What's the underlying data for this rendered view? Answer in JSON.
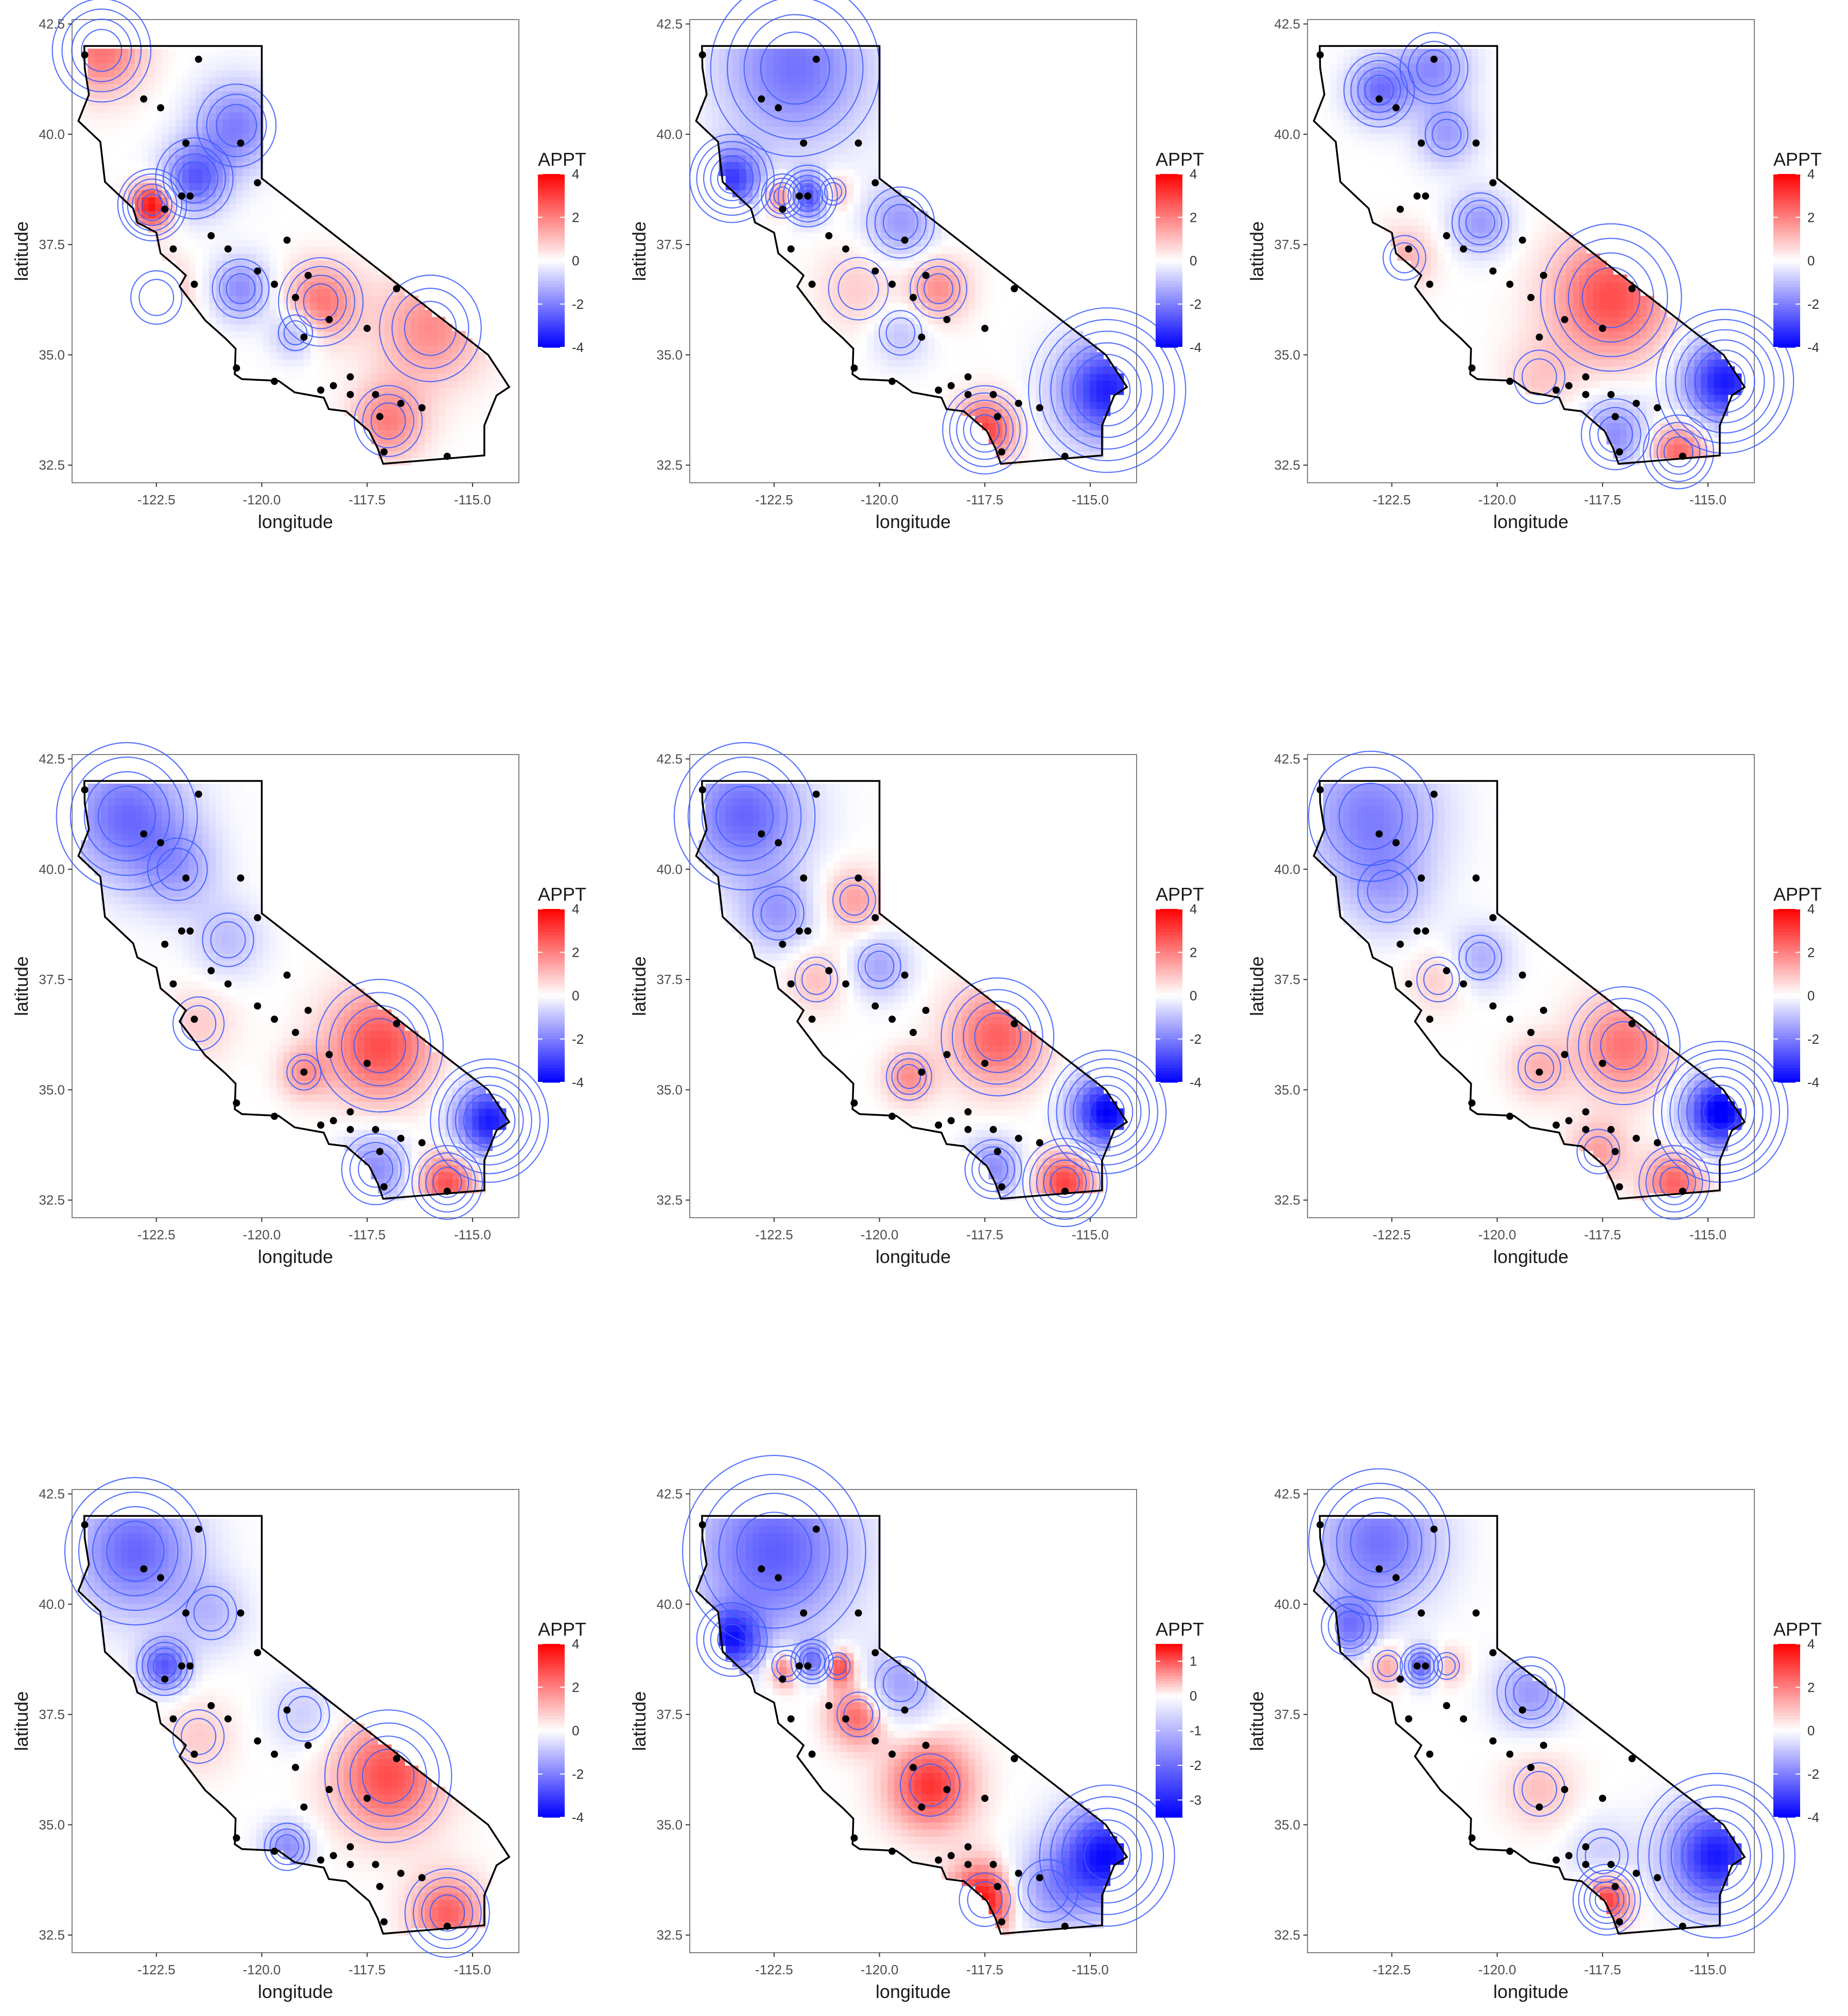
{
  "map": {
    "x_axis_title": "longitude",
    "y_axis_title": "latitude",
    "x_ticks": [
      -122.5,
      -120.0,
      -117.5,
      -115.0
    ],
    "x_tick_labels": [
      "-122.5",
      "-120.0",
      "-117.5",
      "-115.0"
    ],
    "y_ticks": [
      32.5,
      35.0,
      37.5,
      40.0,
      42.5
    ],
    "y_tick_labels": [
      "32.5",
      "35.0",
      "37.5",
      "40.0",
      "42.5"
    ],
    "xlim": [
      -124.5,
      -113.9
    ],
    "ylim": [
      32.1,
      42.6
    ],
    "grid": false,
    "colors": {
      "low": "#0000ff",
      "mid": "#ffffff",
      "high": "#ff0000",
      "contour": "#3b5bff",
      "na": "#555555",
      "station": "#000000"
    }
  },
  "stations": [
    [
      -124.2,
      41.8
    ],
    [
      -122.8,
      40.8
    ],
    [
      -122.4,
      40.6
    ],
    [
      -121.8,
      39.8
    ],
    [
      -121.5,
      41.7
    ],
    [
      -120.5,
      39.8
    ],
    [
      -121.9,
      38.6
    ],
    [
      -121.7,
      38.6
    ],
    [
      -122.3,
      38.3
    ],
    [
      -121.2,
      37.7
    ],
    [
      -120.8,
      37.4
    ],
    [
      -120.1,
      36.9
    ],
    [
      -119.7,
      36.6
    ],
    [
      -119.2,
      36.3
    ],
    [
      -118.9,
      36.8
    ],
    [
      -118.4,
      35.8
    ],
    [
      -117.5,
      35.6
    ],
    [
      -116.8,
      36.5
    ],
    [
      -119.0,
      35.4
    ],
    [
      -118.3,
      34.3
    ],
    [
      -118.6,
      34.2
    ],
    [
      -117.9,
      34.1
    ],
    [
      -117.3,
      34.1
    ],
    [
      -117.2,
      33.6
    ],
    [
      -116.7,
      33.9
    ],
    [
      -116.2,
      33.8
    ],
    [
      -117.1,
      32.8
    ],
    [
      -115.6,
      32.7
    ],
    [
      -120.6,
      34.7
    ],
    [
      -119.7,
      34.4
    ],
    [
      -121.6,
      36.6
    ],
    [
      -122.1,
      37.4
    ],
    [
      -117.9,
      34.5
    ],
    [
      -120.1,
      38.9
    ],
    [
      -119.4,
      37.6
    ]
  ],
  "panels": [
    {
      "legend_title": "APPT",
      "legend_ticks": [
        4,
        2,
        0,
        -2,
        -4
      ],
      "legend_labels": [
        "4",
        "2",
        "0",
        "-2",
        "-4"
      ],
      "legend_range": [
        -4,
        4
      ],
      "field": [
        [
          -123.8,
          41.9,
          2.2,
          0.7
        ],
        [
          -122.6,
          38.4,
          4.0,
          0.35
        ],
        [
          -121.6,
          39.0,
          -2.5,
          0.55
        ],
        [
          -120.6,
          40.2,
          -2.0,
          0.7
        ],
        [
          -122.5,
          36.3,
          1.5,
          0.6
        ],
        [
          -120.5,
          36.5,
          -1.8,
          0.5
        ],
        [
          -119.2,
          35.5,
          -1.5,
          0.4
        ],
        [
          -118.6,
          36.2,
          2.2,
          0.6
        ],
        [
          -116.0,
          35.6,
          1.8,
          0.9
        ],
        [
          -117.0,
          33.5,
          2.0,
          0.6
        ]
      ]
    },
    {
      "legend_title": "APPT",
      "legend_ticks": [
        4,
        2,
        0,
        -2,
        -4
      ],
      "legend_labels": [
        "4",
        "2",
        "0",
        "-2",
        "-4"
      ],
      "legend_range": [
        -4,
        4
      ],
      "field": [
        [
          -122.0,
          41.5,
          -2.2,
          1.2
        ],
        [
          -123.5,
          39.0,
          -3.0,
          0.5
        ],
        [
          -122.3,
          38.6,
          2.5,
          0.3
        ],
        [
          -121.7,
          38.6,
          -3.2,
          0.35
        ],
        [
          -121.1,
          38.7,
          1.5,
          0.3
        ],
        [
          -119.5,
          38.0,
          -1.6,
          0.6
        ],
        [
          -118.6,
          36.5,
          1.8,
          0.5
        ],
        [
          -114.6,
          34.2,
          -3.5,
          0.8
        ],
        [
          -117.5,
          33.3,
          3.0,
          0.5
        ],
        [
          -119.5,
          35.5,
          -1.0,
          0.5
        ],
        [
          -120.5,
          36.5,
          0.8,
          0.7
        ]
      ]
    },
    {
      "legend_title": "APPT",
      "legend_ticks": [
        4,
        2,
        0,
        -2,
        -4
      ],
      "legend_labels": [
        "4",
        "2",
        "0",
        "-2",
        "-4"
      ],
      "legend_range": [
        -4,
        4
      ],
      "field": [
        [
          -122.8,
          41.0,
          -2.2,
          0.5
        ],
        [
          -121.5,
          41.5,
          -1.8,
          0.6
        ],
        [
          -121.2,
          40.0,
          -1.5,
          0.5
        ],
        [
          -120.4,
          38.0,
          -1.6,
          0.5
        ],
        [
          -117.3,
          36.3,
          2.8,
          1.0
        ],
        [
          -114.6,
          34.4,
          -3.6,
          0.7
        ],
        [
          -117.2,
          33.2,
          -1.8,
          0.6
        ],
        [
          -115.7,
          32.8,
          2.5,
          0.5
        ],
        [
          -122.2,
          37.2,
          1.2,
          0.5
        ],
        [
          -119.0,
          34.5,
          0.8,
          0.6
        ]
      ]
    },
    {
      "legend_title": "APPT",
      "legend_ticks": [
        4,
        2,
        0,
        -2,
        -4
      ],
      "legend_labels": [
        "4",
        "2",
        "0",
        "-2",
        "-4"
      ],
      "legend_range": [
        -4,
        4
      ],
      "field": [
        [
          -123.2,
          41.2,
          -2.3,
          1.0
        ],
        [
          -122.0,
          40.0,
          -1.2,
          0.7
        ],
        [
          -120.8,
          38.4,
          -1.0,
          0.6
        ],
        [
          -117.2,
          36.0,
          2.8,
          0.9
        ],
        [
          -114.6,
          34.3,
          -3.6,
          0.6
        ],
        [
          -115.6,
          32.9,
          2.8,
          0.5
        ],
        [
          -117.3,
          33.2,
          -1.8,
          0.6
        ],
        [
          -121.5,
          36.5,
          0.8,
          0.6
        ],
        [
          -119.0,
          35.4,
          1.5,
          0.4
        ]
      ]
    },
    {
      "legend_title": "APPT",
      "legend_ticks": [
        4,
        2,
        0,
        -2,
        -4
      ],
      "legend_labels": [
        "4",
        "2",
        "0",
        "-2",
        "-4"
      ],
      "legend_range": [
        -4,
        4
      ],
      "field": [
        [
          -123.2,
          41.2,
          -2.4,
          1.0
        ],
        [
          -122.4,
          39.0,
          -1.5,
          0.6
        ],
        [
          -120.6,
          39.3,
          1.5,
          0.5
        ],
        [
          -120.0,
          37.8,
          -1.4,
          0.5
        ],
        [
          -117.2,
          36.2,
          2.5,
          0.8
        ],
        [
          -114.6,
          34.5,
          -4.0,
          0.6
        ],
        [
          -115.6,
          32.9,
          3.0,
          0.5
        ],
        [
          -117.3,
          33.2,
          -1.8,
          0.5
        ],
        [
          -119.3,
          35.3,
          1.8,
          0.4
        ],
        [
          -121.5,
          37.5,
          1.0,
          0.5
        ]
      ]
    },
    {
      "legend_title": "APPT",
      "legend_ticks": [
        4,
        2,
        0,
        -2,
        -4
      ],
      "legend_labels": [
        "4",
        "2",
        "0",
        "-2",
        "-4"
      ],
      "legend_range": [
        -4,
        4
      ],
      "field": [
        [
          -123.0,
          41.2,
          -2.0,
          1.1
        ],
        [
          -122.6,
          39.5,
          -1.0,
          0.7
        ],
        [
          -120.4,
          38.0,
          -1.3,
          0.5
        ],
        [
          -117.0,
          36.0,
          2.2,
          0.8
        ],
        [
          -114.7,
          34.5,
          -4.2,
          0.6
        ],
        [
          -115.8,
          32.9,
          2.5,
          0.5
        ],
        [
          -117.6,
          33.6,
          1.5,
          0.5
        ],
        [
          -119.0,
          35.5,
          1.2,
          0.5
        ],
        [
          -121.4,
          37.5,
          0.8,
          0.5
        ]
      ]
    },
    {
      "legend_title": "APPT",
      "legend_ticks": [
        4,
        2,
        0,
        -2,
        -4
      ],
      "legend_labels": [
        "4",
        "2",
        "0",
        "-2",
        "-4"
      ],
      "legend_range": [
        -4,
        4
      ],
      "field": [
        [
          -123.0,
          41.2,
          -2.4,
          1.0
        ],
        [
          -122.3,
          38.6,
          -2.6,
          0.4
        ],
        [
          -121.2,
          39.8,
          -1.0,
          0.6
        ],
        [
          -117.0,
          36.1,
          2.8,
          0.9
        ],
        [
          -115.6,
          33.0,
          2.5,
          0.6
        ],
        [
          -119.4,
          34.5,
          -1.8,
          0.4
        ],
        [
          -121.5,
          37.0,
          0.8,
          0.6
        ],
        [
          -119.0,
          37.5,
          -0.8,
          0.6
        ]
      ]
    },
    {
      "legend_title": "APPT",
      "legend_ticks": [
        1,
        0,
        -1,
        -2,
        -3
      ],
      "legend_labels": [
        "1",
        "0",
        "-1",
        "-2",
        "-3"
      ],
      "legend_range": [
        -3.5,
        1.5
      ],
      "field": [
        [
          -122.5,
          41.2,
          -2.2,
          1.3
        ],
        [
          -123.5,
          39.2,
          -2.8,
          0.5
        ],
        [
          -122.2,
          38.6,
          1.2,
          0.35
        ],
        [
          -121.6,
          38.7,
          -2.2,
          0.3
        ],
        [
          -121.0,
          38.6,
          1.4,
          0.3
        ],
        [
          -120.5,
          37.5,
          1.0,
          0.5
        ],
        [
          -118.8,
          35.9,
          1.2,
          0.7
        ],
        [
          -119.5,
          38.2,
          -1.3,
          0.6
        ],
        [
          -114.6,
          34.3,
          -3.3,
          0.8
        ],
        [
          -117.5,
          33.3,
          1.5,
          0.6
        ],
        [
          -116.0,
          33.5,
          -1.2,
          0.7
        ]
      ]
    },
    {
      "legend_title": "APPT",
      "legend_ticks": [
        4,
        2,
        0,
        -2,
        -4
      ],
      "legend_labels": [
        "4",
        "2",
        "0",
        "-2",
        "-4"
      ],
      "legend_range": [
        -4,
        4
      ],
      "field": [
        [
          -122.8,
          41.4,
          -2.2,
          1.0
        ],
        [
          -123.5,
          39.5,
          -2.0,
          0.5
        ],
        [
          -122.6,
          38.6,
          1.5,
          0.35
        ],
        [
          -121.8,
          38.6,
          -2.6,
          0.3
        ],
        [
          -121.2,
          38.6,
          1.3,
          0.3
        ],
        [
          -119.2,
          38.0,
          -1.6,
          0.6
        ],
        [
          -114.8,
          34.3,
          -3.6,
          0.8
        ],
        [
          -117.4,
          33.3,
          3.2,
          0.4
        ],
        [
          -119.0,
          35.8,
          1.0,
          0.6
        ],
        [
          -117.5,
          34.3,
          -0.8,
          0.6
        ]
      ]
    }
  ]
}
